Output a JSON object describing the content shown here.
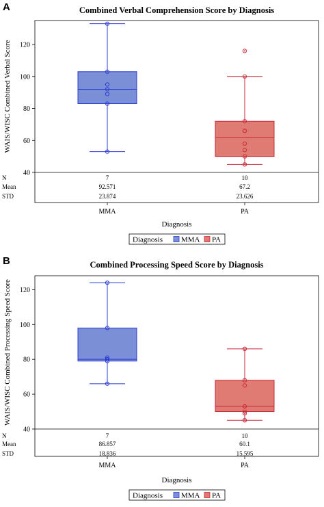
{
  "chart_data": [
    {
      "panel": "A",
      "type": "box",
      "title": "Combined Verbal Comprehension Score by Diagnosis",
      "xlabel": "Diagnosis",
      "ylabel": "WAIS/WISC Combined Verbal Score",
      "ylim": [
        40,
        135
      ],
      "yticks": [
        40,
        60,
        80,
        100,
        120
      ],
      "categories": [
        "MMA",
        "PA"
      ],
      "colors": {
        "MMA": "#7b8fd6",
        "PA": "#e07b73",
        "MMA_line": "#2b3bd1",
        "PA_line": "#c62a36"
      },
      "boxes": [
        {
          "category": "MMA",
          "min": 53,
          "q1": 83,
          "median": 92,
          "mean": 92.571,
          "q3": 103,
          "max": 133,
          "points": [
            53,
            83,
            89,
            92,
            95,
            103,
            133
          ],
          "outliers": []
        },
        {
          "category": "PA",
          "min": 45,
          "q1": 50,
          "median": 62,
          "mean": 67.2,
          "q3": 72,
          "max": 100,
          "points": [
            45,
            45,
            50,
            54,
            58,
            66,
            66,
            72,
            100
          ],
          "outliers": [
            116
          ]
        }
      ],
      "stats": {
        "row_labels": [
          "N",
          "Mean",
          "STD"
        ],
        "MMA": [
          "7",
          "92.571",
          "23.874"
        ],
        "PA": [
          "10",
          "67.2",
          "23.626"
        ]
      },
      "legend": {
        "title": "Diagnosis",
        "items": [
          "MMA",
          "PA"
        ],
        "position": "bottom"
      }
    },
    {
      "panel": "B",
      "type": "box",
      "title": "Combined Processing Speed Score by Diagnosis",
      "xlabel": "Diagnosis",
      "ylabel": "WAIS/WISC Combined Processing Speed Score",
      "ylim": [
        40,
        128
      ],
      "yticks": [
        40,
        60,
        80,
        100,
        120
      ],
      "categories": [
        "MMA",
        "PA"
      ],
      "colors": {
        "MMA": "#7b8fd6",
        "PA": "#e07b73",
        "MMA_line": "#2b3bd1",
        "PA_line": "#c62a36"
      },
      "boxes": [
        {
          "category": "MMA",
          "min": 66,
          "q1": 79,
          "median": 80,
          "mean": 86.857,
          "q3": 98,
          "max": 124,
          "points": [
            66,
            79,
            80,
            80,
            81,
            98,
            124
          ],
          "outliers": []
        },
        {
          "category": "PA",
          "min": 45,
          "q1": 50,
          "median": 53,
          "mean": 60.1,
          "q3": 68,
          "max": 86,
          "points": [
            45,
            45,
            49,
            50,
            53,
            53,
            65,
            68,
            86,
            86
          ],
          "outliers": []
        }
      ],
      "stats": {
        "row_labels": [
          "N",
          "Mean",
          "STD"
        ],
        "MMA": [
          "7",
          "86.857",
          "18.836"
        ],
        "PA": [
          "10",
          "60.1",
          "15.595"
        ]
      },
      "legend": {
        "title": "Diagnosis",
        "items": [
          "MMA",
          "PA"
        ],
        "position": "bottom"
      }
    }
  ]
}
